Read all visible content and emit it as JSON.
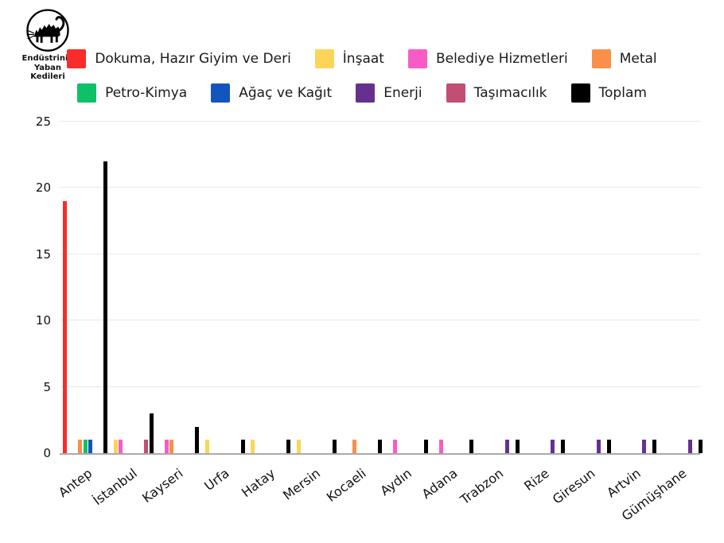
{
  "logo": {
    "lines": [
      "Endüstrinin",
      "Yaban",
      "Kedileri"
    ]
  },
  "colors": {
    "background": "#ffffff",
    "grid": "#e8e8e8",
    "axis_line": "#aaaaaa",
    "text": "#111111"
  },
  "chart_data": {
    "type": "bar",
    "title": "",
    "xlabel": "",
    "ylabel": "",
    "categories": [
      "Antep",
      "İstanbul",
      "Kayseri",
      "Urfa",
      "Hatay",
      "Mersin",
      "Kocaeli",
      "Aydın",
      "Adana",
      "Trabzon",
      "Rize",
      "Giresun",
      "Artvin",
      "Gümüşhane"
    ],
    "series": [
      {
        "name": "Dokuma, Hazır Giyim ve Deri",
        "color": "#FA2B2B",
        "values": [
          19,
          0,
          0,
          0,
          0,
          0,
          0,
          0,
          0,
          0,
          0,
          0,
          0,
          0
        ]
      },
      {
        "name": "İnşaat",
        "color": "#FBD558",
        "values": [
          0,
          1,
          0,
          1,
          1,
          1,
          0,
          0,
          0,
          0,
          0,
          0,
          0,
          0
        ]
      },
      {
        "name": "Belediye Hizmetleri",
        "color": "#F95BC5",
        "values": [
          0,
          1,
          1,
          0,
          0,
          0,
          0,
          1,
          1,
          0,
          0,
          0,
          0,
          0
        ]
      },
      {
        "name": "Metal",
        "color": "#F98F4A",
        "values": [
          1,
          0,
          1,
          0,
          0,
          0,
          1,
          0,
          0,
          0,
          0,
          0,
          0,
          0
        ]
      },
      {
        "name": "Petro-Kimya",
        "color": "#0EC167",
        "values": [
          1,
          0,
          0,
          0,
          0,
          0,
          0,
          0,
          0,
          0,
          0,
          0,
          0,
          0
        ]
      },
      {
        "name": "Ağaç ve Kağıt",
        "color": "#1355BE",
        "values": [
          1,
          0,
          0,
          0,
          0,
          0,
          0,
          0,
          0,
          0,
          0,
          0,
          0,
          0
        ]
      },
      {
        "name": "Enerji",
        "color": "#66308F",
        "values": [
          0,
          0,
          0,
          0,
          0,
          0,
          0,
          0,
          0,
          1,
          1,
          1,
          1,
          1
        ]
      },
      {
        "name": "Taşımacılık",
        "color": "#C24E74",
        "values": [
          0,
          1,
          0,
          0,
          0,
          0,
          0,
          0,
          0,
          0,
          0,
          0,
          0,
          0
        ]
      },
      {
        "name": "Toplam",
        "color": "#000000",
        "values": [
          22,
          3,
          2,
          1,
          1,
          1,
          1,
          1,
          1,
          1,
          1,
          1,
          1,
          1
        ]
      }
    ],
    "ylim": [
      0,
      25
    ],
    "yticks": [
      0,
      5,
      10,
      15,
      20,
      25
    ],
    "grid": true,
    "legend_position": "top",
    "legend_row_split": 4
  }
}
